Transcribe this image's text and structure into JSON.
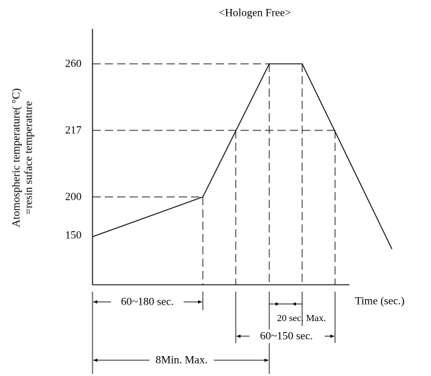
{
  "title": "<Hologen Free>",
  "y_axis_label": [
    "Atomospheric temperature( °C)",
    "=resin suface temperature"
  ],
  "levels": [
    "260",
    "217",
    "200",
    "150"
  ],
  "x_axis_label": "Time (sec.)",
  "spans": [
    "60~180 sec.",
    "20 sec. Max.",
    "60~150 sec.",
    "8Min. Max."
  ]
}
